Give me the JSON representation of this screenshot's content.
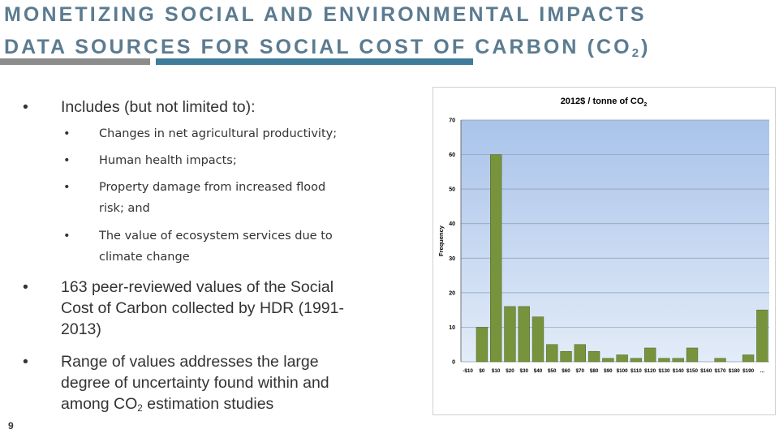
{
  "title": {
    "line1": "MONETIZING SOCIAL AND ENVIRONMENTAL IMPACTS",
    "line2": [
      "DATA SOURCES FOR SOCIAL COST OF CARBON (CO",
      "2",
      ")"
    ]
  },
  "bullets": [
    {
      "level": 1,
      "lines": [
        "Includes (but not limited to):"
      ]
    },
    {
      "level": 2,
      "lines": [
        "Changes in net agricultural productivity;"
      ]
    },
    {
      "level": 2,
      "lines": [
        "Human health impacts;"
      ]
    },
    {
      "level": 2,
      "lines": [
        "Property damage from increased flood",
        "risk; and"
      ]
    },
    {
      "level": 2,
      "lines": [
        "The value of ecosystem services due to",
        "climate change"
      ]
    },
    {
      "level": 1,
      "lines": [
        "163 peer-reviewed values of the Social",
        "Cost of Carbon collected by HDR (1991-",
        "2013)"
      ]
    },
    {
      "level": 1,
      "lines": [
        "Range of values addresses the large",
        "degree of uncertainty found within and",
        [
          "among CO",
          "2",
          " estimation studies"
        ]
      ]
    }
  ],
  "page_number": "9",
  "chart_data": {
    "type": "bar",
    "title": [
      "2012$ / tonne of CO",
      "2"
    ],
    "ylabel": "Frequency",
    "categories": [
      "-$10",
      "$0",
      "$10",
      "$20",
      "$30",
      "$40",
      "$50",
      "$60",
      "$70",
      "$80",
      "$90",
      "$100",
      "$110",
      "$120",
      "$130",
      "$140",
      "$150",
      "$160",
      "$170",
      "$180",
      "$190",
      "..."
    ],
    "values": [
      0,
      10,
      60,
      16,
      16,
      13,
      5,
      3,
      5,
      3,
      1,
      2,
      1,
      4,
      1,
      1,
      4,
      0,
      1,
      0,
      2,
      15
    ],
    "color": "#77933c",
    "ylim": [
      0,
      70
    ],
    "yticks": [
      0,
      10,
      20,
      30,
      40,
      50,
      60,
      70
    ],
    "grid": true
  }
}
